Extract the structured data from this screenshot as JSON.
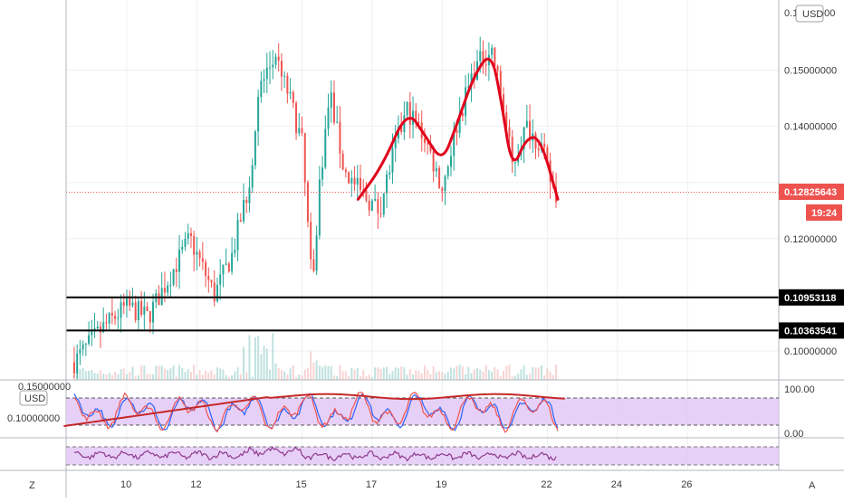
{
  "corner_labels": {
    "left": "Z",
    "right": "A"
  },
  "currency": "USD",
  "price_axis": {
    "top_label": "0.1",
    "top_suffix": "000",
    "ticks": [
      {
        "value": 0.15,
        "label": "0.15000000"
      },
      {
        "value": 0.14,
        "label": "0.14000000"
      },
      {
        "value": 0.13,
        "label": "0.13000000"
      },
      {
        "value": 0.12,
        "label": "0.12000000"
      },
      {
        "value": 0.1,
        "label": "0.10000000"
      }
    ],
    "current_price_label": "0.12825643",
    "countdown": "19:24"
  },
  "horizontal_levels": [
    {
      "value": 0.10953118,
      "label": "0.10953118"
    },
    {
      "value": 0.10363541,
      "label": "0.10363541"
    }
  ],
  "volume_pane": {
    "top_label": "0.15000000",
    "currency": "USD",
    "mid_label": "0.10000000"
  },
  "stoch_pane": {
    "labels": [
      "100.00",
      "0.00"
    ]
  },
  "time_axis": {
    "labels": [
      "10",
      "12",
      "15",
      "17",
      "19",
      "22",
      "24",
      "26"
    ]
  },
  "colors": {
    "up": "#26a69a",
    "down": "#ef5350",
    "trend_line": "#e0001b",
    "current_price": "#ef5350",
    "stoch_k": "#2962ff",
    "stoch_d": "#ef5350",
    "band_fill": "#e1c4f5",
    "second_osc": "#8e3a8e"
  },
  "chart_data": {
    "type": "candlestick",
    "ylim": [
      0.095,
      0.162
    ],
    "hlines": [
      0.10953118,
      0.10363541
    ],
    "last_price": 0.12825643,
    "anchors": [
      [
        8.5,
        0.098
      ],
      [
        9.3,
        0.104
      ],
      [
        10.0,
        0.108
      ],
      [
        10.6,
        0.106
      ],
      [
        11.2,
        0.113
      ],
      [
        11.8,
        0.12
      ],
      [
        12.5,
        0.11
      ],
      [
        13.0,
        0.117
      ],
      [
        13.5,
        0.13
      ],
      [
        13.8,
        0.147
      ],
      [
        14.2,
        0.152
      ],
      [
        14.6,
        0.146
      ],
      [
        15.0,
        0.137
      ],
      [
        15.3,
        0.11
      ],
      [
        15.5,
        0.13
      ],
      [
        15.8,
        0.146
      ],
      [
        16.2,
        0.132
      ],
      [
        16.7,
        0.128
      ],
      [
        17.2,
        0.125
      ],
      [
        17.6,
        0.135
      ],
      [
        18.0,
        0.143
      ],
      [
        18.5,
        0.138
      ],
      [
        19.0,
        0.129
      ],
      [
        19.4,
        0.14
      ],
      [
        19.9,
        0.15
      ],
      [
        20.4,
        0.154
      ],
      [
        20.7,
        0.145
      ],
      [
        21.0,
        0.133
      ],
      [
        21.4,
        0.14
      ],
      [
        21.8,
        0.137
      ],
      [
        22.1,
        0.13
      ],
      [
        22.3,
        0.127
      ]
    ],
    "trend_line": [
      [
        16.6,
        0.127
      ],
      [
        17.3,
        0.133
      ],
      [
        18.0,
        0.143
      ],
      [
        18.5,
        0.1385
      ],
      [
        19.0,
        0.1335
      ],
      [
        19.4,
        0.14
      ],
      [
        19.9,
        0.149
      ],
      [
        20.4,
        0.1535
      ],
      [
        20.7,
        0.144
      ],
      [
        21.0,
        0.132
      ],
      [
        21.4,
        0.138
      ],
      [
        21.8,
        0.138
      ],
      [
        22.3,
        0.127
      ]
    ],
    "x_range": [
      8.0,
      27.6
    ]
  }
}
